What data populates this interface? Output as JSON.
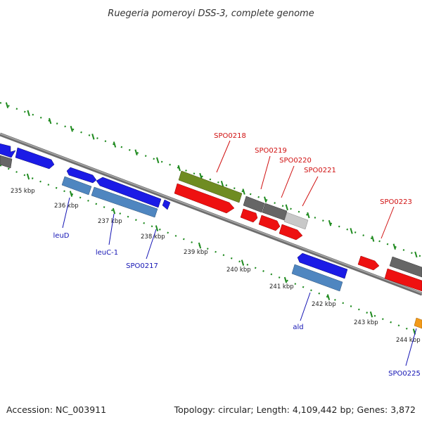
{
  "title": "Ruegeria pomeroyi DSS-3, complete genome",
  "footer": {
    "accession": "Accession: NC_003911",
    "summary": "Topology: circular; Length: 4,109,442 bp; Genes: 3,872"
  },
  "colors": {
    "background": "#ffffff",
    "backbone": "#8c8c8c",
    "tick": "#1e8a1e",
    "forward_label": "#d01010",
    "reverse_label": "#1414b4",
    "gene_blue": "#1b1be6",
    "gene_steel": "#4f86c0",
    "gene_red": "#ee1111",
    "gene_gray": "#666666",
    "gene_lightgray": "#c8c8c8",
    "gene_olive": "#6f8c22",
    "gene_orange": "#f29a1a"
  },
  "tick_labels": [
    "235 kbp",
    "236 kbp",
    "237 kbp",
    "238 kbp",
    "239 kbp",
    "240 kbp",
    "241 kbp",
    "242 kbp",
    "243 kbp",
    "244 kbp"
  ],
  "gene_labels": {
    "forward": [
      "SPO0218",
      "SPO0219",
      "SPO0220",
      "SPO0221",
      "SPO0223"
    ],
    "reverse": [
      "leuD",
      "leuC-1",
      "SPO0217",
      "ald",
      "SPO0225"
    ]
  }
}
